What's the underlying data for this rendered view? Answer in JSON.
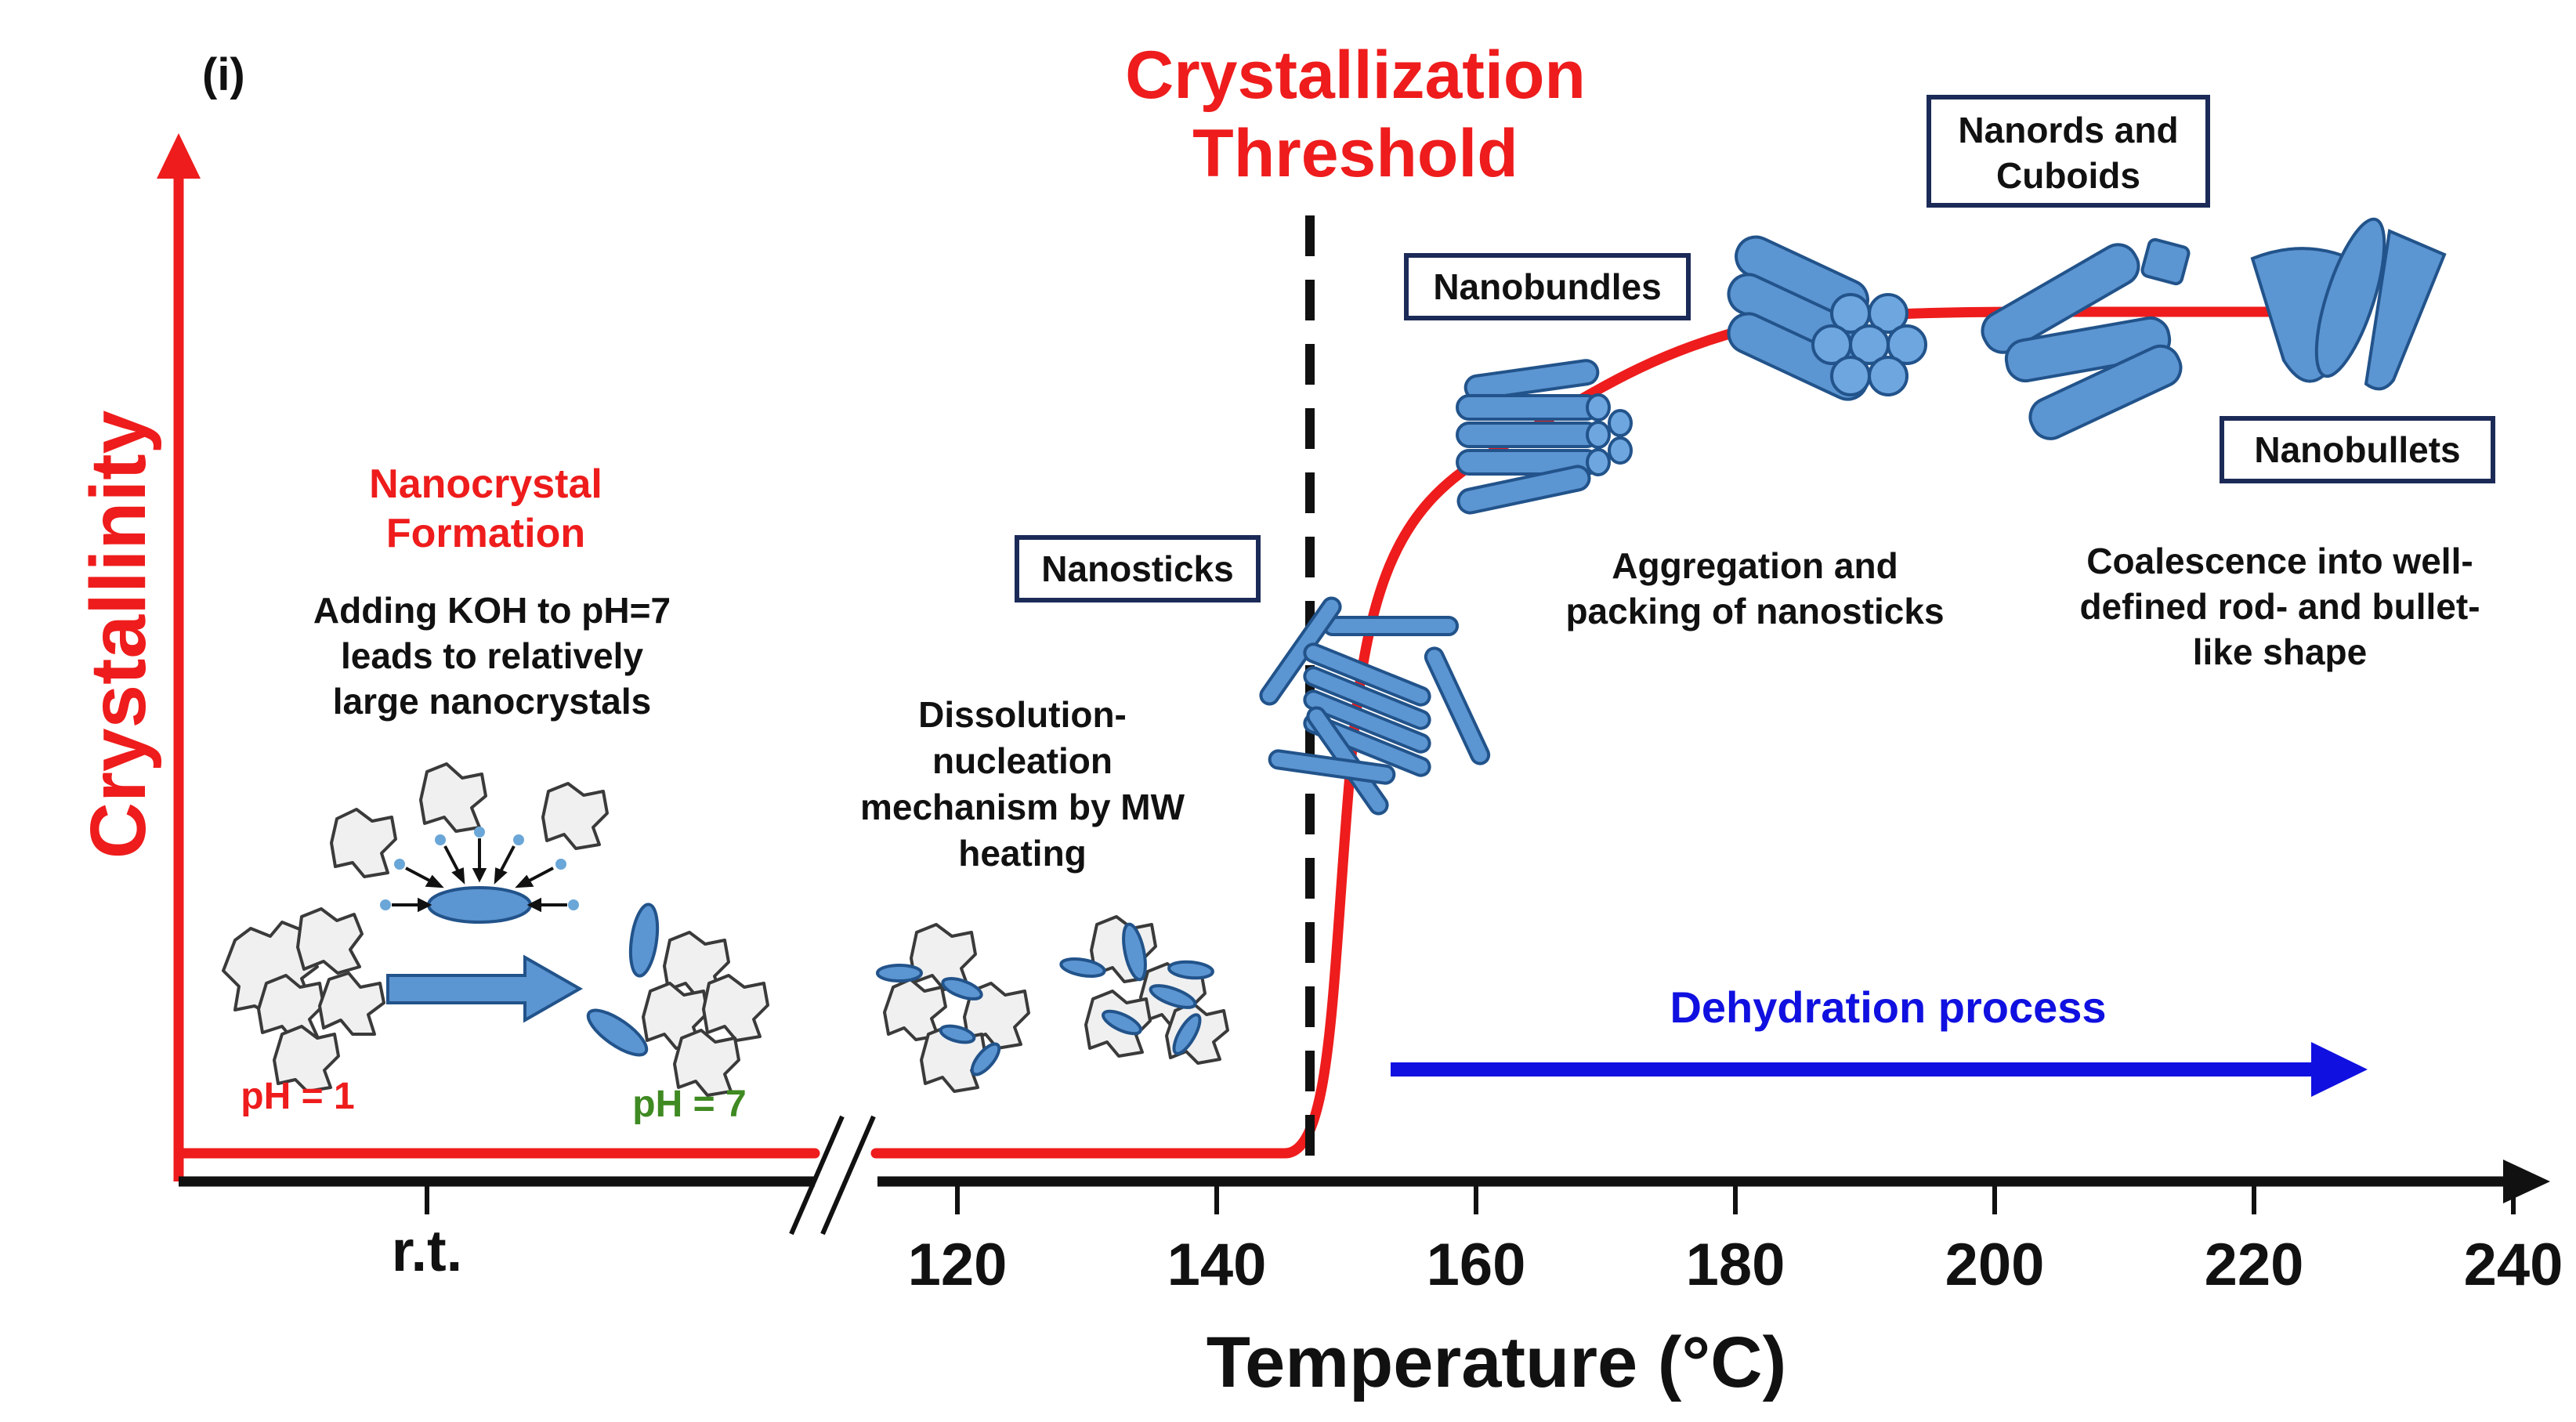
{
  "panel_label": "(i)",
  "threshold": {
    "line1": "Crystallization",
    "line2": "Threshold"
  },
  "y_axis": {
    "label": "Crystallinity"
  },
  "x_axis": {
    "label": "Temperature (°C)",
    "rt_label": "r.t.",
    "ticks": [
      "120",
      "140",
      "160",
      "180",
      "200",
      "220",
      "240"
    ]
  },
  "nanocrystal": {
    "title_line1": "Nanocrystal",
    "title_line2": "Formation",
    "desc_line1": "Adding KOH to pH=7",
    "desc_line2": "leads to relatively",
    "desc_line3": "large nanocrystals",
    "ph1": "pH = 1",
    "ph7": "pH = 7"
  },
  "dissolution": {
    "line1": "Dissolution-",
    "line2": "nucleation",
    "line3": "mechanism by MW",
    "line4": "heating"
  },
  "labels": {
    "nanosticks": "Nanosticks",
    "nanobundles": "Nanobundles",
    "nanords_line1": "Nanords and",
    "nanords_line2": "Cuboids",
    "nanobullets": "Nanobullets"
  },
  "aggregation": {
    "line1": "Aggregation and",
    "line2": "packing of nanosticks"
  },
  "coalescence": {
    "line1": "Coalescence into well-",
    "line2": "defined rod- and bullet-",
    "line3": "like shape"
  },
  "dehydration": {
    "label": "Dehydration process"
  },
  "colors": {
    "curve": "#ee1c1c",
    "dehydration_arrow": "#1010e0",
    "particles": "#5b95d2",
    "box_border": "#1b2a57",
    "ph7_text": "#3f8a22"
  }
}
